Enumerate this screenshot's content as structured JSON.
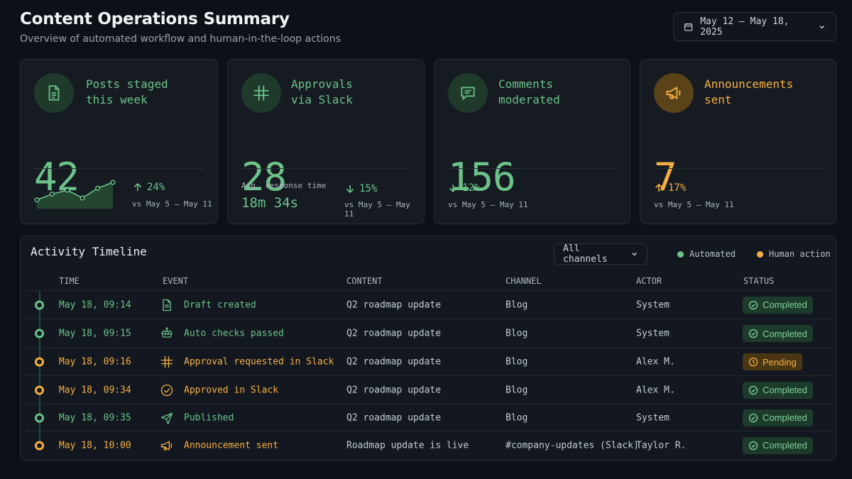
{
  "header": {
    "title": "Content Operations Summary",
    "subtitle": "Overview of automated workflow and human-in-the-loop actions",
    "date_range": "May 12 – May 18, 2025"
  },
  "cards": [
    {
      "label": "Posts staged\nthis week",
      "value": "42",
      "delta": "24%",
      "direction": "up",
      "period": "vs May 5 – May 11",
      "icon": "document-icon",
      "accent": "#6cc38a",
      "sparkline": [
        3,
        6,
        8,
        4,
        9,
        12
      ]
    },
    {
      "label": "Approvals\nvia Slack",
      "value": "28",
      "delta": "15%",
      "direction": "down",
      "period": "vs May 5 – May 11",
      "icon": "slack-icon",
      "accent": "#6cc38a",
      "response_label": "Avg. response time",
      "response_value": "18m 34s"
    },
    {
      "label": "Comments\nmoderated",
      "value": "156",
      "delta": "12%",
      "direction": "down",
      "period": "vs May 5 – May 11",
      "icon": "chat-icon",
      "accent": "#6cc38a"
    },
    {
      "label": "Announcements\nsent",
      "value": "7",
      "delta": "17%",
      "direction": "up",
      "period": "vs May 5 – May 11",
      "icon": "megaphone-icon",
      "accent": "#f6b042"
    }
  ],
  "timeline": {
    "title": "Activity Timeline",
    "channel_filter": "All channels",
    "legend": {
      "automated": "Automated",
      "human": "Human action"
    },
    "columns": [
      "TIME",
      "EVENT",
      "CONTENT",
      "CHANNEL",
      "ACTOR",
      "STATUS"
    ],
    "rows": [
      {
        "time": "May 18, 09:14",
        "event": "Draft created",
        "content": "Q2 roadmap update",
        "channel": "Blog",
        "actor": "System",
        "status": "Completed",
        "kind": "automated",
        "icon": "document-icon"
      },
      {
        "time": "May 18, 09:15",
        "event": "Auto checks passed",
        "content": "Q2 roadmap update",
        "channel": "Blog",
        "actor": "System",
        "status": "Completed",
        "kind": "automated",
        "icon": "robot-icon"
      },
      {
        "time": "May 18, 09:16",
        "event": "Approval requested in Slack",
        "content": "Q2 roadmap update",
        "channel": "Blog",
        "actor": "Alex M.",
        "status": "Pending",
        "kind": "human",
        "icon": "slack-icon"
      },
      {
        "time": "May 18, 09:34",
        "event": "Approved in Slack",
        "content": "Q2 roadmap update",
        "channel": "Blog",
        "actor": "Alex M.",
        "status": "Completed",
        "kind": "human",
        "icon": "check-circle-icon"
      },
      {
        "time": "May 18, 09:35",
        "event": "Published",
        "content": "Q2 roadmap update",
        "channel": "Blog",
        "actor": "System",
        "status": "Completed",
        "kind": "automated",
        "icon": "send-icon"
      },
      {
        "time": "May 18, 10:00",
        "event": "Announcement sent",
        "content": "Roadmap update is live",
        "channel": "#company-updates (Slack)",
        "actor": "Taylor R.",
        "status": "Completed",
        "kind": "human",
        "icon": "megaphone-icon"
      }
    ]
  },
  "colors": {
    "automated": "#6cc38a",
    "human": "#f6b042",
    "background": "#0d1117",
    "card": "#161b22"
  }
}
